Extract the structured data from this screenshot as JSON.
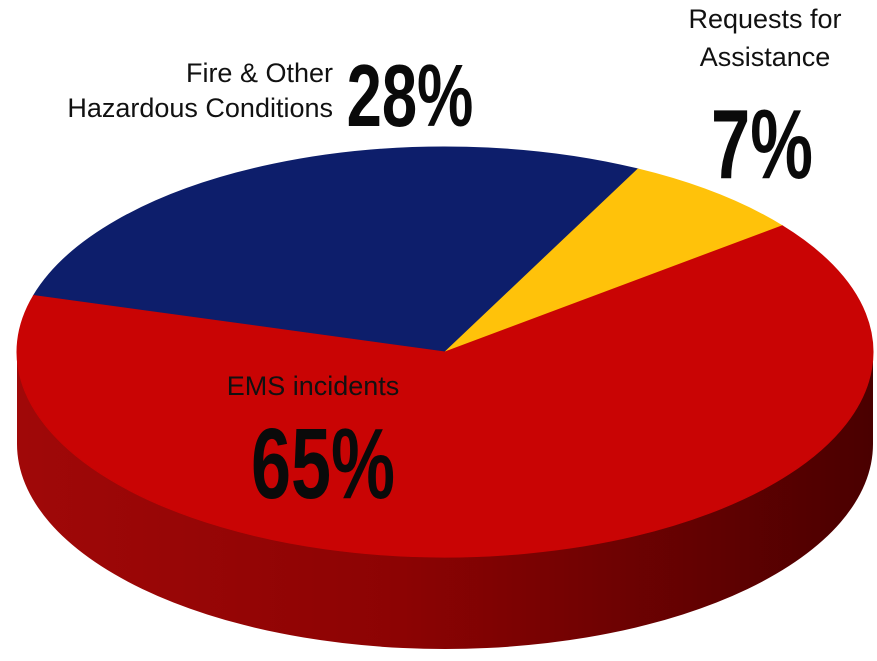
{
  "chart_data": {
    "type": "pie",
    "style": "3d",
    "slices": [
      {
        "label": "Fire & Other Hazardous Conditions",
        "label_lines": [
          "Fire & Other",
          "Hazardous Conditions"
        ],
        "percent_text": "28%",
        "value": 28,
        "color": "#0d1e6b",
        "side_color": "#08124a"
      },
      {
        "label": "Requests for Assistance",
        "label_lines": [
          "Requests for",
          "Assistance"
        ],
        "percent_text": "7%",
        "value": 7,
        "color": "#ffc20a",
        "side_color": "#c99400"
      },
      {
        "label": "EMS incidents",
        "label_lines": [
          "EMS incidents"
        ],
        "percent_text": "65%",
        "value": 65,
        "color": "#c90404",
        "side_color": "#7a0000"
      }
    ]
  }
}
